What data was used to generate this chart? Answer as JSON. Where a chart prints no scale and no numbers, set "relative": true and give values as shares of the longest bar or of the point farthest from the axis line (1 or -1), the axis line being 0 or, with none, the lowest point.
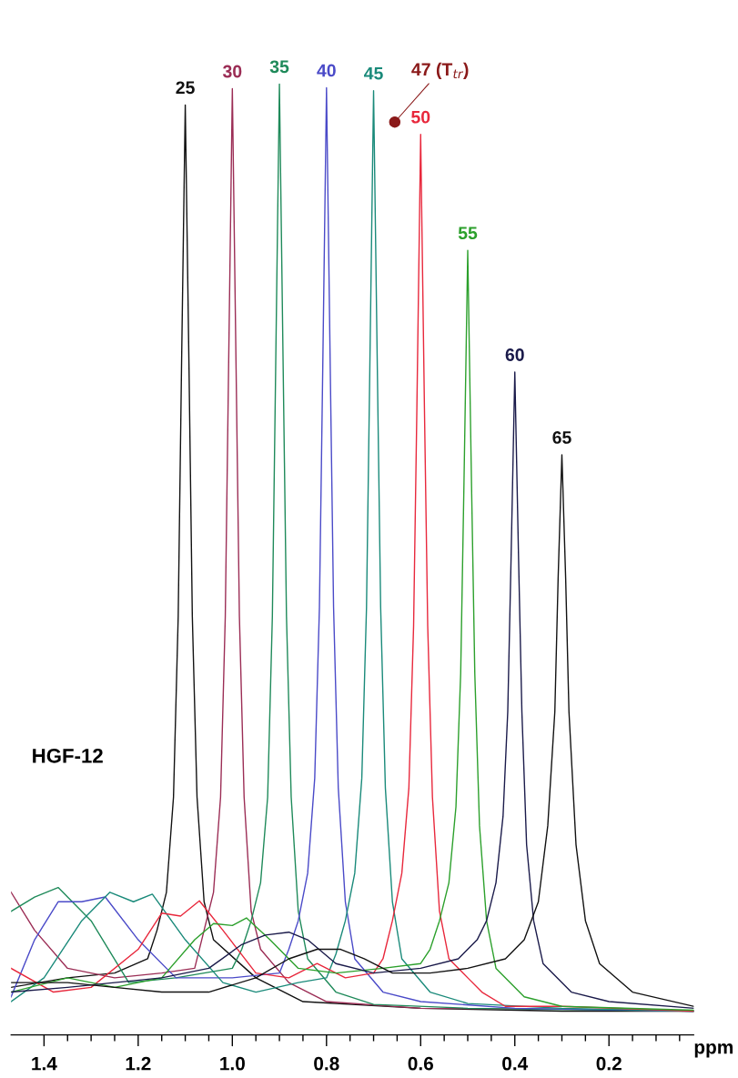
{
  "chart_data": {
    "type": "line",
    "relative": true,
    "xlabel": "ppm",
    "xlim": [
      1.47,
      0.02
    ],
    "xticks": [
      1.4,
      {
        "value": 1.35,
        "label": null
      },
      {
        "value": 1.3,
        "label": null
      },
      {
        "value": 1.25,
        "label": null
      },
      1.2,
      {
        "value": 1.15,
        "label": null
      },
      {
        "value": 1.1,
        "label": null
      },
      {
        "value": 1.05,
        "label": null
      },
      {
        "value": 1.0,
        "label": "1.0"
      },
      {
        "value": 0.95,
        "label": null
      },
      {
        "value": 0.9,
        "label": null
      },
      {
        "value": 0.85,
        "label": null
      },
      0.8,
      {
        "value": 0.75,
        "label": null
      },
      {
        "value": 0.7,
        "label": null
      },
      {
        "value": 0.65,
        "label": null
      },
      0.6,
      {
        "value": 0.55,
        "label": null
      },
      {
        "value": 0.5,
        "label": null
      },
      {
        "value": 0.45,
        "label": null
      },
      0.4,
      {
        "value": 0.35,
        "label": null
      },
      {
        "value": 0.3,
        "label": null
      },
      {
        "value": 0.25,
        "label": null
      },
      0.2,
      {
        "value": 0.15,
        "label": null
      },
      {
        "value": 0.1,
        "label": null
      },
      {
        "value": 0.05,
        "label": null
      }
    ],
    "tick_labels": "x",
    "marker": "none",
    "line_style": "solid",
    "annotations": [
      "HGF-12",
      {
        "text": "47 (T$_{tr}$)",
        "x": 0.655,
        "y": 0.96
      }
    ],
    "series": [
      {
        "name": "25",
        "color": "#111111",
        "x": [
          1.47,
          1.35,
          1.25,
          1.18,
          1.16,
          1.14,
          1.125,
          1.115,
          1.108,
          1.1,
          1.092,
          1.085,
          1.075,
          1.06,
          1.04,
          0.95,
          0.85,
          0.6,
          0.3,
          0.02
        ],
        "values": [
          0.05,
          0.06,
          0.065,
          0.08,
          0.11,
          0.15,
          0.25,
          0.44,
          0.7,
          0.978,
          0.7,
          0.44,
          0.25,
          0.14,
          0.1,
          0.06,
          0.035,
          0.028,
          0.025,
          0.025
        ]
      },
      {
        "name": "30",
        "color": "#9b2d55",
        "x": [
          1.47,
          1.42,
          1.35,
          1.25,
          1.15,
          1.08,
          1.06,
          1.04,
          1.025,
          1.015,
          1.008,
          1.0,
          0.992,
          0.985,
          0.975,
          0.96,
          0.94,
          0.88,
          0.8,
          0.6,
          0.3,
          0.02
        ],
        "values": [
          0.15,
          0.11,
          0.07,
          0.06,
          0.065,
          0.07,
          0.11,
          0.15,
          0.25,
          0.44,
          0.7,
          0.995,
          0.7,
          0.44,
          0.25,
          0.13,
          0.09,
          0.055,
          0.035,
          0.028,
          0.027,
          0.025
        ]
      },
      {
        "name": "35",
        "color": "#1f8a5a",
        "x": [
          1.47,
          1.42,
          1.37,
          1.3,
          1.22,
          1.12,
          1.0,
          0.98,
          0.96,
          0.94,
          0.925,
          0.915,
          0.908,
          0.9,
          0.892,
          0.885,
          0.875,
          0.86,
          0.84,
          0.78,
          0.7,
          0.5,
          0.2,
          0.02
        ],
        "values": [
          0.13,
          0.145,
          0.155,
          0.12,
          0.055,
          0.06,
          0.07,
          0.09,
          0.12,
          0.16,
          0.25,
          0.44,
          0.7,
          1.0,
          0.7,
          0.44,
          0.25,
          0.13,
          0.08,
          0.045,
          0.032,
          0.028,
          0.026,
          0.025
        ]
      },
      {
        "name": "40",
        "color": "#4a4ac8",
        "x": [
          1.47,
          1.42,
          1.37,
          1.32,
          1.27,
          1.2,
          1.12,
          1.0,
          0.9,
          0.88,
          0.86,
          0.84,
          0.825,
          0.815,
          0.808,
          0.8,
          0.792,
          0.785,
          0.775,
          0.76,
          0.74,
          0.68,
          0.6,
          0.4,
          0.02
        ],
        "values": [
          0.04,
          0.1,
          0.14,
          0.14,
          0.145,
          0.1,
          0.06,
          0.06,
          0.065,
          0.09,
          0.12,
          0.17,
          0.27,
          0.45,
          0.7,
          0.996,
          0.7,
          0.45,
          0.26,
          0.14,
          0.08,
          0.045,
          0.035,
          0.028,
          0.025
        ]
      },
      {
        "name": "45",
        "color": "#1a8a7a",
        "x": [
          1.47,
          1.4,
          1.32,
          1.26,
          1.21,
          1.17,
          1.1,
          1.02,
          0.95,
          0.86,
          0.8,
          0.78,
          0.76,
          0.74,
          0.725,
          0.715,
          0.708,
          0.7,
          0.692,
          0.685,
          0.675,
          0.66,
          0.64,
          0.58,
          0.5,
          0.3,
          0.02
        ],
        "values": [
          0.035,
          0.06,
          0.12,
          0.15,
          0.14,
          0.148,
          0.1,
          0.055,
          0.045,
          0.055,
          0.06,
          0.085,
          0.12,
          0.17,
          0.27,
          0.45,
          0.7,
          0.993,
          0.7,
          0.45,
          0.26,
          0.14,
          0.08,
          0.045,
          0.033,
          0.028,
          0.025
        ]
      },
      {
        "name": "50",
        "color": "#e8283c",
        "x": [
          1.47,
          1.38,
          1.3,
          1.2,
          1.15,
          1.11,
          1.07,
          1.02,
          0.95,
          0.88,
          0.82,
          0.76,
          0.7,
          0.68,
          0.66,
          0.64,
          0.625,
          0.615,
          0.608,
          0.6,
          0.592,
          0.585,
          0.575,
          0.56,
          0.54,
          0.5,
          0.47,
          0.42,
          0.3,
          0.02
        ],
        "values": [
          0.07,
          0.045,
          0.05,
          0.09,
          0.128,
          0.125,
          0.141,
          0.11,
          0.065,
          0.06,
          0.075,
          0.06,
          0.065,
          0.08,
          0.12,
          0.17,
          0.26,
          0.43,
          0.66,
          0.947,
          0.66,
          0.43,
          0.25,
          0.13,
          0.08,
          0.06,
          0.045,
          0.03,
          0.03,
          0.025
        ]
      },
      {
        "name": "55",
        "color": "#2ca02c",
        "x": [
          1.47,
          1.35,
          1.25,
          1.15,
          1.08,
          1.04,
          1.0,
          0.97,
          0.92,
          0.86,
          0.78,
          0.68,
          0.6,
          0.58,
          0.56,
          0.54,
          0.525,
          0.515,
          0.508,
          0.5,
          0.492,
          0.485,
          0.475,
          0.46,
          0.44,
          0.38,
          0.3,
          0.02
        ],
        "values": [
          0.045,
          0.06,
          0.05,
          0.06,
          0.1,
          0.117,
          0.115,
          0.123,
          0.1,
          0.07,
          0.065,
          0.07,
          0.075,
          0.09,
          0.12,
          0.16,
          0.24,
          0.38,
          0.58,
          0.825,
          0.58,
          0.38,
          0.22,
          0.12,
          0.07,
          0.04,
          0.03,
          0.026
        ]
      },
      {
        "name": "60",
        "color": "#1a1a4a",
        "x": [
          1.47,
          1.35,
          1.25,
          1.15,
          1.05,
          0.98,
          0.93,
          0.88,
          0.84,
          0.78,
          0.7,
          0.6,
          0.52,
          0.48,
          0.46,
          0.44,
          0.425,
          0.415,
          0.408,
          0.4,
          0.392,
          0.385,
          0.375,
          0.36,
          0.34,
          0.28,
          0.2,
          0.02
        ],
        "values": [
          0.045,
          0.05,
          0.055,
          0.06,
          0.07,
          0.095,
          0.105,
          0.108,
          0.1,
          0.075,
          0.065,
          0.07,
          0.08,
          0.1,
          0.12,
          0.16,
          0.23,
          0.34,
          0.5,
          0.697,
          0.5,
          0.34,
          0.2,
          0.12,
          0.075,
          0.045,
          0.035,
          0.028
        ]
      },
      {
        "name": "65",
        "color": "#111111",
        "x": [
          1.47,
          1.35,
          1.25,
          1.15,
          1.05,
          0.95,
          0.88,
          0.82,
          0.77,
          0.72,
          0.66,
          0.58,
          0.5,
          0.42,
          0.38,
          0.35,
          0.33,
          0.315,
          0.308,
          0.3,
          0.292,
          0.285,
          0.27,
          0.25,
          0.22,
          0.15,
          0.02
        ],
        "values": [
          0.055,
          0.055,
          0.05,
          0.045,
          0.045,
          0.06,
          0.08,
          0.09,
          0.09,
          0.08,
          0.065,
          0.065,
          0.07,
          0.08,
          0.1,
          0.14,
          0.22,
          0.34,
          0.48,
          0.61,
          0.48,
          0.34,
          0.2,
          0.12,
          0.075,
          0.045,
          0.03
        ]
      }
    ]
  }
}
